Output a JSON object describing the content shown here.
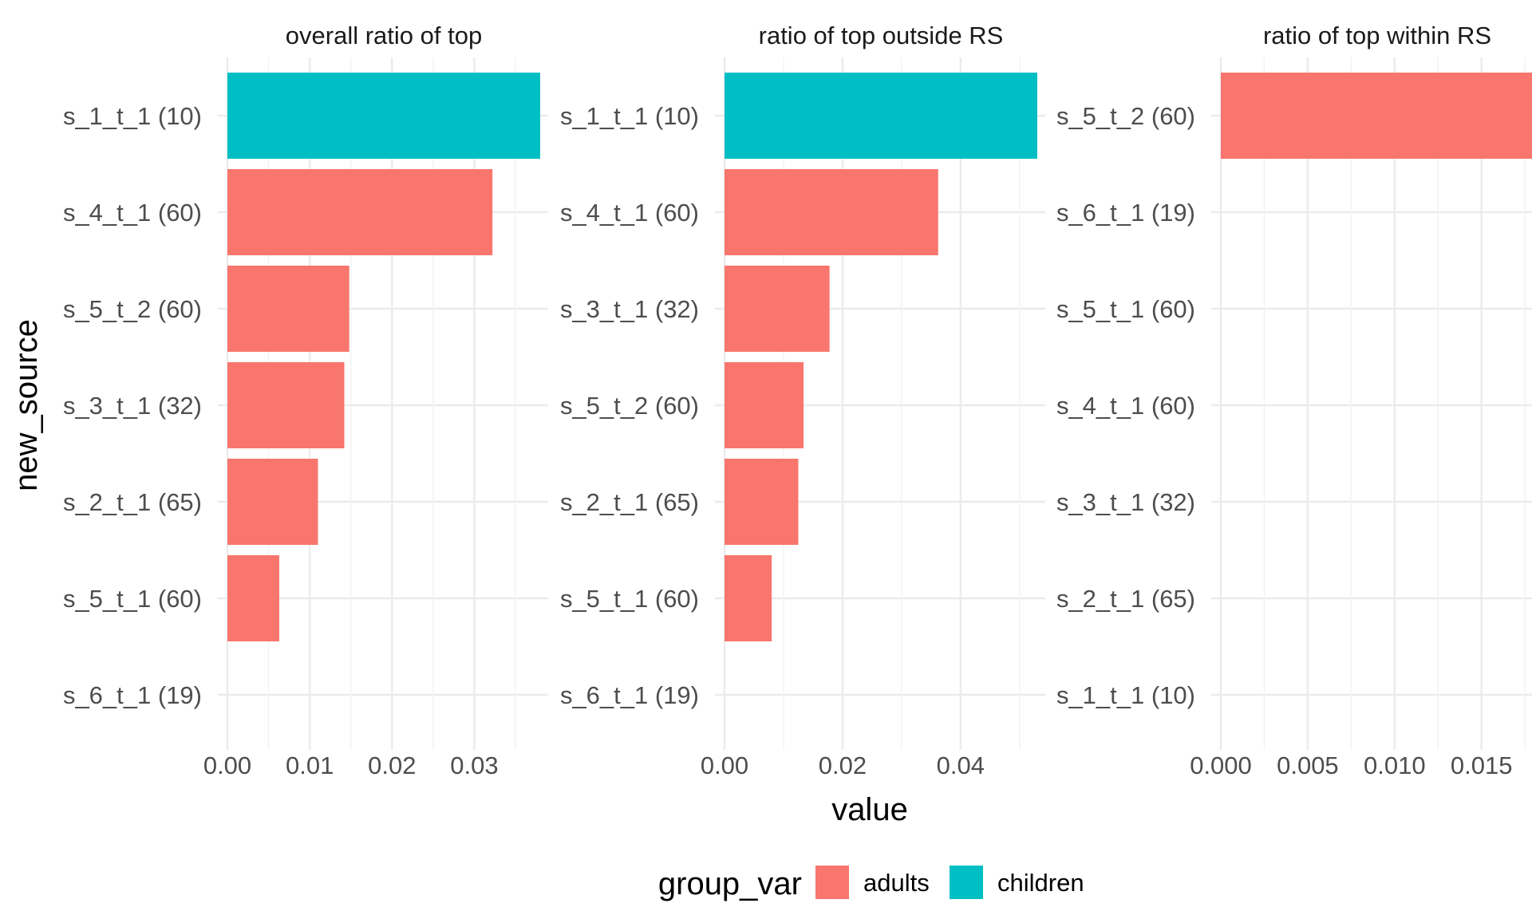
{
  "chart_data": {
    "type": "bar",
    "orientation": "horizontal",
    "xlabel": "value",
    "ylabel": "new_source",
    "grid": true,
    "legend": {
      "title": "group_var",
      "position": "bottom",
      "entries": [
        {
          "name": "adults",
          "color": "#F8766D"
        },
        {
          "name": "children",
          "color": "#00BFC4"
        }
      ]
    },
    "panels": [
      {
        "title": "overall ratio of top",
        "xlim": [
          0,
          0.038
        ],
        "xticks": [
          0.0,
          0.01,
          0.02,
          0.03
        ],
        "xtick_labels": [
          "0.00",
          "0.01",
          "0.02",
          "0.03"
        ],
        "categories": [
          "s_1_t_1 (10)",
          "s_4_t_1 (60)",
          "s_5_t_2 (60)",
          "s_3_t_1 (32)",
          "s_2_t_1 (65)",
          "s_5_t_1 (60)",
          "s_6_t_1 (19)"
        ],
        "values": [
          0.038,
          0.0322,
          0.0148,
          0.0142,
          0.011,
          0.0063,
          0
        ],
        "groups": [
          "children",
          "adults",
          "adults",
          "adults",
          "adults",
          "adults",
          "adults"
        ]
      },
      {
        "title": "ratio of top outside RS",
        "xlim": [
          0,
          0.053
        ],
        "xticks": [
          0.0,
          0.02,
          0.04
        ],
        "xtick_labels": [
          "0.00",
          "0.02",
          "0.04"
        ],
        "categories": [
          "s_1_t_1 (10)",
          "s_4_t_1 (60)",
          "s_3_t_1 (32)",
          "s_5_t_2 (60)",
          "s_2_t_1 (65)",
          "s_5_t_1 (60)",
          "s_6_t_1 (19)"
        ],
        "values": [
          0.053,
          0.0362,
          0.0178,
          0.0134,
          0.0125,
          0.008,
          0
        ],
        "groups": [
          "children",
          "adults",
          "adults",
          "adults",
          "adults",
          "adults",
          "adults"
        ]
      },
      {
        "title": "ratio of top within RS",
        "xlim": [
          0,
          0.018
        ],
        "xticks": [
          0.0,
          0.005,
          0.01,
          0.015
        ],
        "xtick_labels": [
          "0.000",
          "0.005",
          "0.010",
          "0.015"
        ],
        "categories": [
          "s_5_t_2 (60)",
          "s_6_t_1 (19)",
          "s_5_t_1 (60)",
          "s_4_t_1 (60)",
          "s_3_t_1 (32)",
          "s_2_t_1 (65)",
          "s_1_t_1 (10)"
        ],
        "values": [
          0.018,
          0,
          0,
          0,
          0,
          0,
          0
        ],
        "groups": [
          "adults",
          "adults",
          "adults",
          "adults",
          "adults",
          "adults",
          "children"
        ]
      }
    ]
  }
}
